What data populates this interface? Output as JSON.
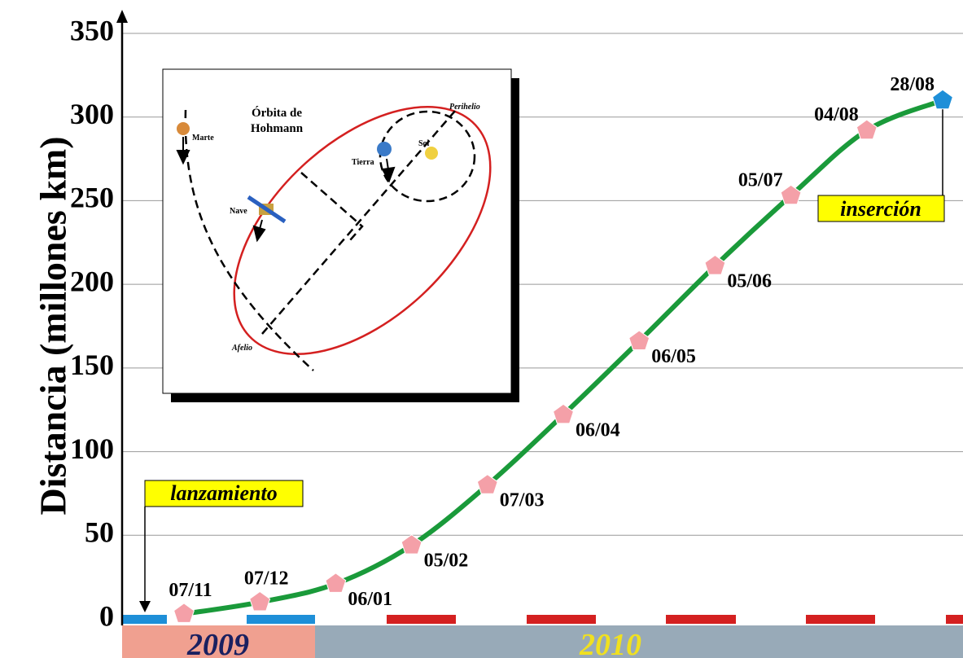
{
  "chart_data": {
    "type": "line",
    "y_label": "Distancia (millones km)",
    "categories": [
      "07/11",
      "07/12",
      "06/01",
      "05/02",
      "07/03",
      "06/04",
      "06/05",
      "05/06",
      "05/07",
      "04/08",
      "28/08"
    ],
    "series": [
      {
        "color": "#1a9a3a",
        "point_colors": [
          "#f4a0a8",
          "#f4a0a8",
          "#f4a0a8",
          "#f4a0a8",
          "#f4a0a8",
          "#f4a0a8",
          "#f4a0a8",
          "#f4a0a8",
          "#f4a0a8",
          "#f4a0a8",
          "#1e8fd8"
        ],
        "values": [
          3,
          10,
          21,
          44,
          80,
          122,
          166,
          211,
          253,
          292,
          310
        ]
      }
    ],
    "ylim": [
      0,
      350
    ],
    "yticks": [
      0,
      50,
      100,
      150,
      200,
      250,
      300,
      350
    ],
    "grid": true,
    "years": [
      "2009",
      "2010"
    ],
    "annotations": [
      "lanzamiento",
      "inserción"
    ],
    "inset": {
      "title_lines": [
        "Órbita de",
        "Hohmann"
      ],
      "labels": [
        "Marte",
        "Nave",
        "Tierra",
        "Sol",
        "Perihelio",
        "Afelio"
      ]
    }
  }
}
